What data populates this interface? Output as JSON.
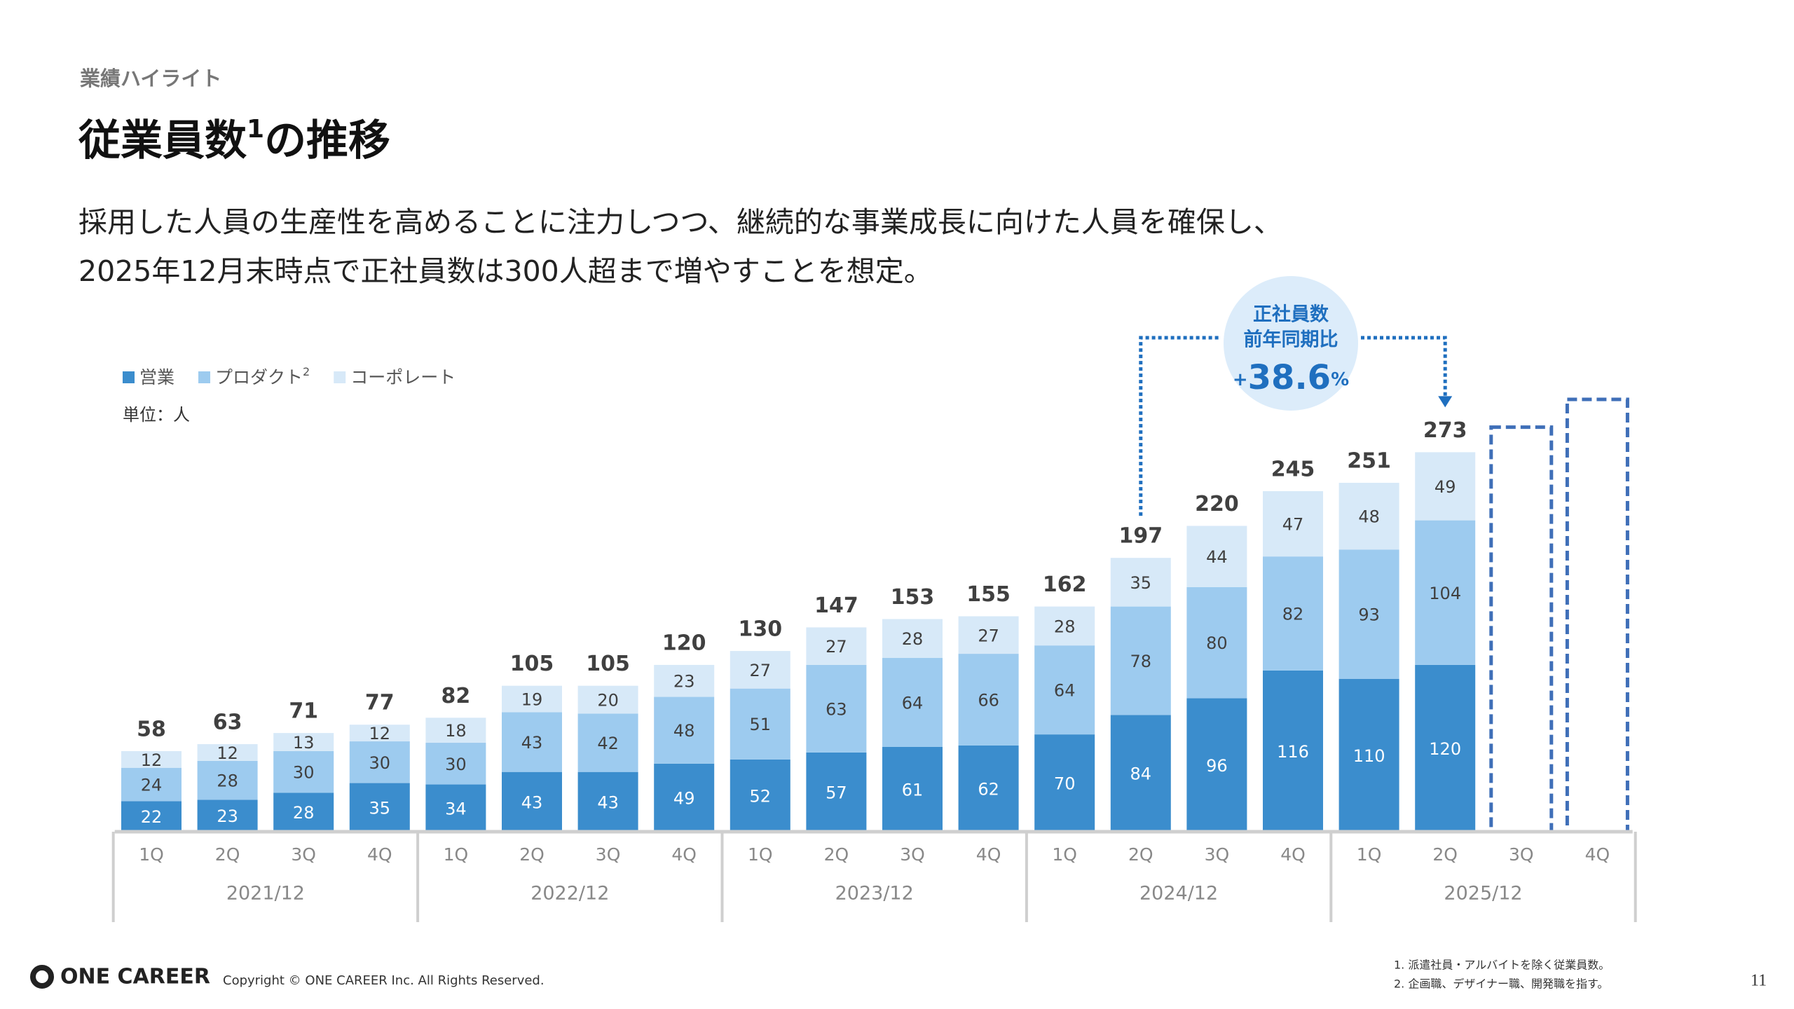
{
  "header": {
    "section": "業績ハイライト",
    "title": [
      "従業員数",
      "1",
      "の推移"
    ],
    "description": [
      "採用した人員の生産性を高めることに注力しつつ、継続的な事業成長に向けた人員を確保し、",
      "2025年12月末時点で正社員数は300人超まで増やすことを想定。"
    ]
  },
  "chart_data": {
    "type": "stacked_bar",
    "unit_label": "単位：人",
    "categories": [
      "1Q",
      "2Q",
      "3Q",
      "4Q",
      "1Q",
      "2Q",
      "3Q",
      "4Q",
      "1Q",
      "2Q",
      "3Q",
      "4Q",
      "1Q",
      "2Q",
      "3Q",
      "4Q",
      "1Q",
      "2Q",
      "3Q",
      "4Q"
    ],
    "groups": [
      "2021/12",
      "2022/12",
      "2023/12",
      "2024/12",
      "2025/12"
    ],
    "series": [
      {
        "name": "営業",
        "color": "#3b8dcd",
        "label_color": "#ffffff",
        "values": [
          22,
          23,
          28,
          35,
          34,
          43,
          43,
          49,
          52,
          57,
          61,
          62,
          70,
          84,
          96,
          116,
          110,
          120,
          null,
          null
        ]
      },
      {
        "name": "プロダクト",
        "name_sup": "2",
        "color": "#9dcbef",
        "label_color": "#404040",
        "values": [
          24,
          28,
          30,
          30,
          30,
          43,
          42,
          48,
          51,
          63,
          64,
          66,
          64,
          78,
          80,
          82,
          93,
          104,
          null,
          null
        ]
      },
      {
        "name": "コーポレート",
        "color": "#d7e9f8",
        "label_color": "#404040",
        "values": [
          12,
          12,
          13,
          12,
          18,
          19,
          20,
          23,
          27,
          27,
          28,
          27,
          28,
          35,
          44,
          47,
          48,
          49,
          null,
          null
        ]
      }
    ],
    "totals": [
      58,
      63,
      71,
      77,
      82,
      105,
      105,
      120,
      130,
      147,
      153,
      155,
      162,
      197,
      220,
      245,
      251,
      273,
      null,
      null
    ],
    "outline_values": [
      null,
      null,
      null,
      null,
      null,
      null,
      null,
      null,
      null,
      null,
      null,
      null,
      null,
      null,
      null,
      null,
      null,
      null,
      291,
      311
    ],
    "outline_color": "#3f6fb8",
    "callout": {
      "lines": [
        "正社員数",
        "前年同期比"
      ],
      "sign": "+",
      "value": 38.6,
      "unit": "%",
      "from": 13,
      "to": 17,
      "color": "#1f6fbf"
    }
  },
  "footer": {
    "logo": "ONE CAREER",
    "copyright": "Copyright © ONE CAREER Inc. All Rights Reserved.",
    "notes": [
      "1. 派遣社員・アルバイトを除く従業員数。",
      "2. 企画職、デザイナー職、開発職を指す。"
    ],
    "page": "11"
  }
}
